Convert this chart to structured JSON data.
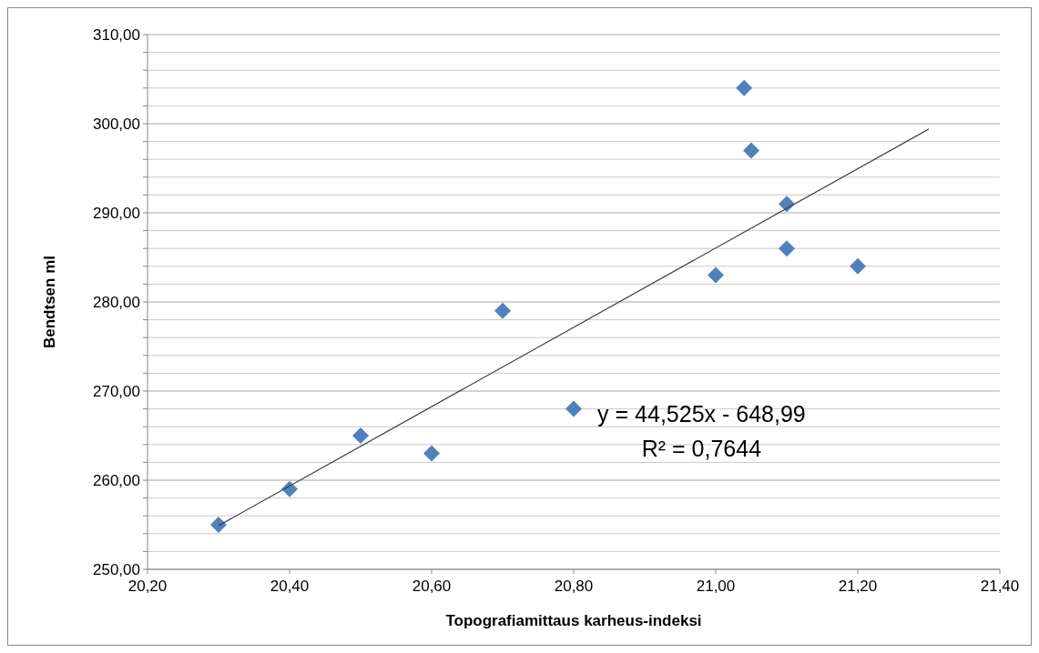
{
  "chart_data": {
    "type": "scatter",
    "xlabel": "Topografiamittaus karheus-indeksi",
    "ylabel": "Bendtsen ml",
    "series": [
      {
        "color": "#4f81bd",
        "marker": "diamond",
        "x": [
          20.3,
          20.4,
          20.5,
          20.6,
          20.7,
          20.8,
          21.0,
          21.04,
          21.05,
          21.1,
          21.1,
          21.2
        ],
        "values": [
          255,
          259,
          265,
          263,
          279,
          268,
          283,
          304,
          297,
          291,
          286,
          284
        ]
      },
      {
        "type": "line",
        "color": "#404040",
        "marker": "none",
        "x": [
          20.3,
          21.3
        ],
        "values": [
          254.9,
          299.4
        ]
      }
    ],
    "xlim": [
      20.2,
      21.4
    ],
    "xticks": [
      {
        "value": 20.2,
        "label": "20,20"
      },
      {
        "value": 20.4,
        "label": "20,40"
      },
      {
        "value": 20.6,
        "label": "20,60"
      },
      {
        "value": 20.8,
        "label": "20,80"
      },
      {
        "value": 21.0,
        "label": "21,00"
      },
      {
        "value": 21.2,
        "label": "21,20"
      },
      {
        "value": 21.4,
        "label": "21,40"
      }
    ],
    "ylim": [
      250,
      310
    ],
    "yticks": [
      {
        "value": 250,
        "label": "250,00"
      },
      {
        "value": 252,
        "label": null
      },
      {
        "value": 254,
        "label": null
      },
      {
        "value": 256,
        "label": null
      },
      {
        "value": 258,
        "label": null
      },
      {
        "value": 260,
        "label": "260,00"
      },
      {
        "value": 262,
        "label": null
      },
      {
        "value": 264,
        "label": null
      },
      {
        "value": 266,
        "label": null
      },
      {
        "value": 268,
        "label": null
      },
      {
        "value": 270,
        "label": "270,00"
      },
      {
        "value": 272,
        "label": null
      },
      {
        "value": 274,
        "label": null
      },
      {
        "value": 276,
        "label": null
      },
      {
        "value": 278,
        "label": null
      },
      {
        "value": 280,
        "label": "280,00"
      },
      {
        "value": 282,
        "label": null
      },
      {
        "value": 284,
        "label": null
      },
      {
        "value": 286,
        "label": null
      },
      {
        "value": 288,
        "label": null
      },
      {
        "value": 290,
        "label": "290,00"
      },
      {
        "value": 292,
        "label": null
      },
      {
        "value": 294,
        "label": null
      },
      {
        "value": 296,
        "label": null
      },
      {
        "value": 298,
        "label": null
      },
      {
        "value": 300,
        "label": "300,00"
      },
      {
        "value": 302,
        "label": null
      },
      {
        "value": 304,
        "label": null
      },
      {
        "value": 306,
        "label": null
      },
      {
        "value": 308,
        "label": null
      },
      {
        "value": 310,
        "label": "310,00"
      }
    ],
    "grid": "y",
    "annotations": [
      "y = 44,525x - 648,99",
      "R² = 0,7644"
    ]
  }
}
